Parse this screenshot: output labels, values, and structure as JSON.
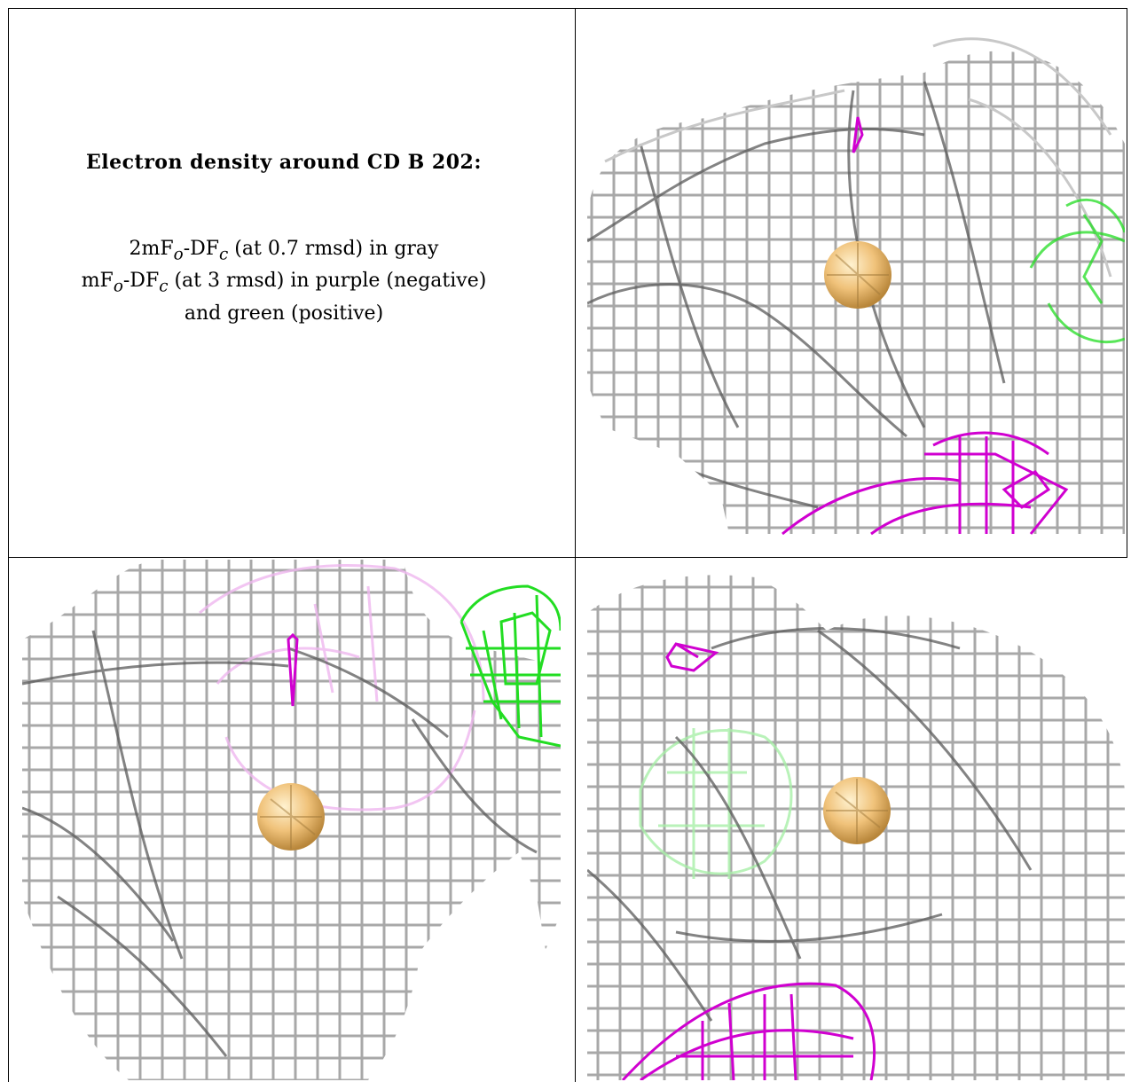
{
  "caption": {
    "title": "Electron density around CD B 202:",
    "line1": "2mF",
    "line1_sub": "o",
    "line1_mid": "-DF",
    "line1_sub2": "c",
    "line1_rest": " (at 0.7 rmsd) in gray",
    "line2": "mF",
    "line2_sub": "o",
    "line2_mid": "-DF",
    "line2_sub2": "c",
    "line2_rest": " (at 3 rmsd) in purple (negative)",
    "line3": "and green (positive)"
  },
  "colors": {
    "mesh_gray": "#9a9a9a",
    "mesh_dark": "#555555",
    "mesh_purple": "#d000d0",
    "mesh_green": "#22dd22",
    "atom": "#e8b86a"
  },
  "panels": [
    {
      "name": "top-right-view",
      "atom": "CD"
    },
    {
      "name": "bottom-left-view",
      "atom": "CD"
    },
    {
      "name": "bottom-right-view",
      "atom": "CD"
    }
  ]
}
